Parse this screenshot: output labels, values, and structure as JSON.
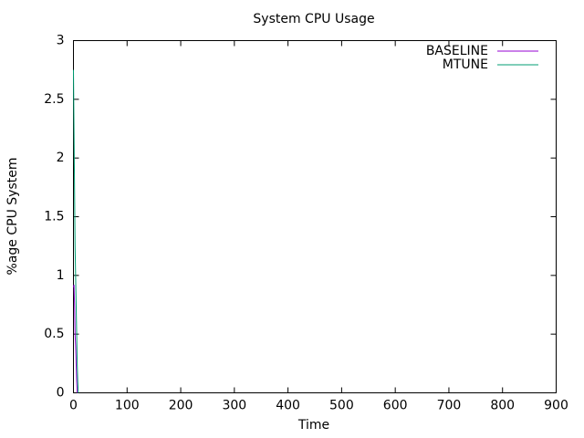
{
  "chart_data": {
    "type": "line",
    "title": "System CPU Usage",
    "x_label": "Time",
    "y_label": "%age CPU System",
    "xlim": [
      0,
      900
    ],
    "xticks": [
      0,
      100,
      200,
      300,
      400,
      500,
      600,
      700,
      800,
      900
    ],
    "ylim": [
      0,
      3
    ],
    "yticks": [
      0,
      0.5,
      1,
      1.5,
      2,
      2.5,
      3
    ],
    "grid": false,
    "legend": "top-right",
    "series": [
      {
        "name": "BASELINE",
        "color": "#9400d3",
        "x": [
          0,
          1,
          2,
          3,
          4,
          5,
          6,
          7
        ],
        "values": [
          0.9,
          0.92,
          0.75,
          0.5,
          0.4,
          0.25,
          0.1,
          0
        ]
      },
      {
        "name": "MTUNE",
        "color": "#009e73",
        "x": [
          0,
          1,
          2,
          3,
          4,
          5,
          6,
          7,
          8,
          9
        ],
        "values": [
          2.75,
          2.25,
          1.75,
          1.25,
          1.0,
          0.75,
          0.5,
          0.25,
          0.1,
          0
        ]
      }
    ]
  }
}
